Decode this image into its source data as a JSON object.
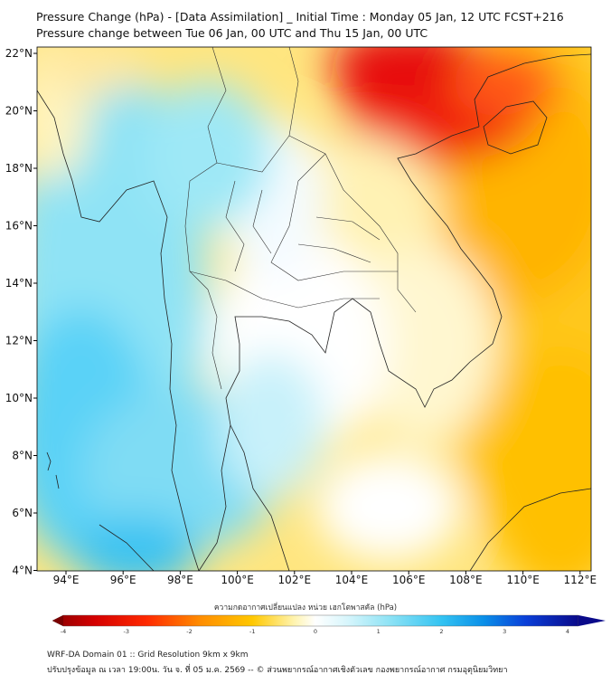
{
  "header": {
    "title": "Pressure Change (hPa) - [Data Assimilation] _ Initial Time : Monday 05 Jan, 12 UTC FCST+216",
    "subtitle": "Pressure change between Tue 06 Jan, 00 UTC and Thu 15 Jan, 00 UTC"
  },
  "map": {
    "lat_labels": [
      "22°N",
      "20°N",
      "18°N",
      "16°N",
      "14°N",
      "12°N",
      "10°N",
      "8°N",
      "6°N",
      "4°N"
    ],
    "lon_labels": [
      "94°E",
      "96°E",
      "98°E",
      "100°E",
      "102°E",
      "104°E",
      "106°E",
      "108°E",
      "110°E",
      "112°E"
    ],
    "colors": {
      "strong_negative": "#e60f0f",
      "negative": "#ffa500",
      "weak_negative": "#ffe07a",
      "neutral": "#ffffff",
      "positive": "#8ce6f5",
      "strong_positive": "#3cc6f5",
      "border": "#222222"
    }
  },
  "colorbar": {
    "label": "ความกดอากาศเปลี่ยนแปลง หน่วย เฮกโตพาสคัล (hPa)",
    "ticks": [
      "-4",
      "-3",
      "-2",
      "-1",
      "0",
      "1",
      "2",
      "3",
      "4"
    ],
    "min": -4,
    "max": 4
  },
  "footer": {
    "line1": "WRF-DA Domain 01 :: Grid Resolution 9km x 9km",
    "line2": "ปรับปรุงข้อมูล ณ เวลา 19:00น. วัน จ. ที่ 05 ม.ค. 2569 -- © ส่วนพยากรณ์อากาศเชิงตัวเลข กองพยากรณ์อากาศ กรมอุตุนิยมวิทยา"
  }
}
